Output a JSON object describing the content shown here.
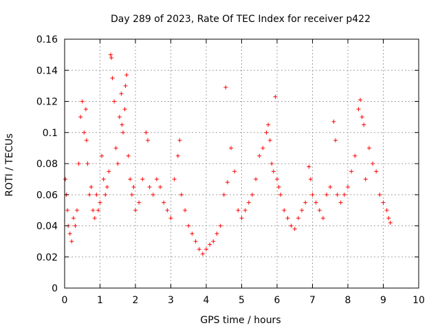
{
  "chart_data": {
    "type": "scatter",
    "title": "Day 289 of 2023, Rate Of TEC Index for receiver p422",
    "xlabel": "GPS time / hours",
    "ylabel": "ROTI / TECUs",
    "xlim": [
      0,
      10
    ],
    "ylim": [
      0,
      0.16
    ],
    "x_ticks": [
      0,
      1,
      2,
      3,
      4,
      5,
      6,
      7,
      8,
      9,
      10
    ],
    "y_ticks": [
      0,
      0.02,
      0.04,
      0.06,
      0.08,
      0.1,
      0.12,
      0.14,
      0.16
    ],
    "x_tick_labels": [
      "0",
      "1",
      "2",
      "3",
      "4",
      "5",
      "6",
      "7",
      "8",
      "9",
      "10"
    ],
    "y_tick_labels": [
      "0",
      "0.02",
      "0.04",
      "0.06",
      "0.08",
      "0.1",
      "0.12",
      "0.14",
      "0.16"
    ],
    "grid": true,
    "marker": "+",
    "color": "#ff0000",
    "series": [
      {
        "name": "p422",
        "x": [
          0.02,
          0.05,
          0.08,
          0.1,
          0.15,
          0.2,
          0.25,
          0.3,
          0.35,
          0.4,
          0.45,
          0.5,
          0.55,
          0.6,
          0.62,
          0.65,
          0.7,
          0.75,
          0.8,
          0.85,
          0.9,
          0.95,
          1.0,
          1.05,
          1.1,
          1.15,
          1.2,
          1.25,
          1.3,
          1.32,
          1.35,
          1.4,
          1.45,
          1.5,
          1.55,
          1.6,
          1.62,
          1.65,
          1.7,
          1.72,
          1.75,
          1.8,
          1.85,
          1.9,
          1.95,
          2.0,
          2.1,
          2.2,
          2.3,
          2.35,
          2.4,
          2.5,
          2.6,
          2.7,
          2.8,
          2.9,
          3.0,
          3.1,
          3.2,
          3.25,
          3.3,
          3.4,
          3.5,
          3.6,
          3.7,
          3.8,
          3.9,
          4.0,
          4.1,
          4.2,
          4.3,
          4.4,
          4.5,
          4.55,
          4.6,
          4.7,
          4.8,
          4.9,
          5.0,
          5.1,
          5.2,
          5.3,
          5.4,
          5.5,
          5.6,
          5.7,
          5.75,
          5.8,
          5.85,
          5.9,
          5.95,
          6.0,
          6.05,
          6.1,
          6.2,
          6.3,
          6.4,
          6.5,
          6.6,
          6.7,
          6.8,
          6.9,
          6.95,
          7.0,
          7.1,
          7.2,
          7.3,
          7.4,
          7.5,
          7.6,
          7.65,
          7.7,
          7.8,
          7.9,
          8.0,
          8.1,
          8.2,
          8.3,
          8.35,
          8.4,
          8.45,
          8.5,
          8.6,
          8.7,
          8.8,
          8.9,
          9.0,
          9.1,
          9.15,
          9.2
        ],
        "y": [
          0.07,
          0.06,
          0.05,
          0.04,
          0.035,
          0.03,
          0.045,
          0.04,
          0.05,
          0.08,
          0.11,
          0.12,
          0.1,
          0.115,
          0.095,
          0.08,
          0.06,
          0.065,
          0.05,
          0.045,
          0.06,
          0.05,
          0.055,
          0.085,
          0.07,
          0.06,
          0.065,
          0.075,
          0.15,
          0.148,
          0.135,
          0.12,
          0.09,
          0.08,
          0.11,
          0.125,
          0.105,
          0.1,
          0.115,
          0.13,
          0.137,
          0.085,
          0.07,
          0.06,
          0.065,
          0.05,
          0.055,
          0.07,
          0.1,
          0.095,
          0.065,
          0.06,
          0.07,
          0.065,
          0.055,
          0.05,
          0.045,
          0.07,
          0.085,
          0.095,
          0.06,
          0.05,
          0.04,
          0.035,
          0.03,
          0.025,
          0.022,
          0.025,
          0.028,
          0.03,
          0.035,
          0.04,
          0.06,
          0.129,
          0.068,
          0.09,
          0.075,
          0.05,
          0.045,
          0.05,
          0.055,
          0.06,
          0.07,
          0.085,
          0.09,
          0.1,
          0.105,
          0.095,
          0.08,
          0.075,
          0.123,
          0.07,
          0.065,
          0.06,
          0.05,
          0.045,
          0.04,
          0.038,
          0.045,
          0.05,
          0.055,
          0.078,
          0.07,
          0.06,
          0.055,
          0.05,
          0.045,
          0.06,
          0.065,
          0.107,
          0.095,
          0.06,
          0.055,
          0.06,
          0.065,
          0.075,
          0.085,
          0.115,
          0.121,
          0.11,
          0.105,
          0.07,
          0.09,
          0.08,
          0.075,
          0.06,
          0.055,
          0.05,
          0.045,
          0.042
        ]
      }
    ]
  }
}
